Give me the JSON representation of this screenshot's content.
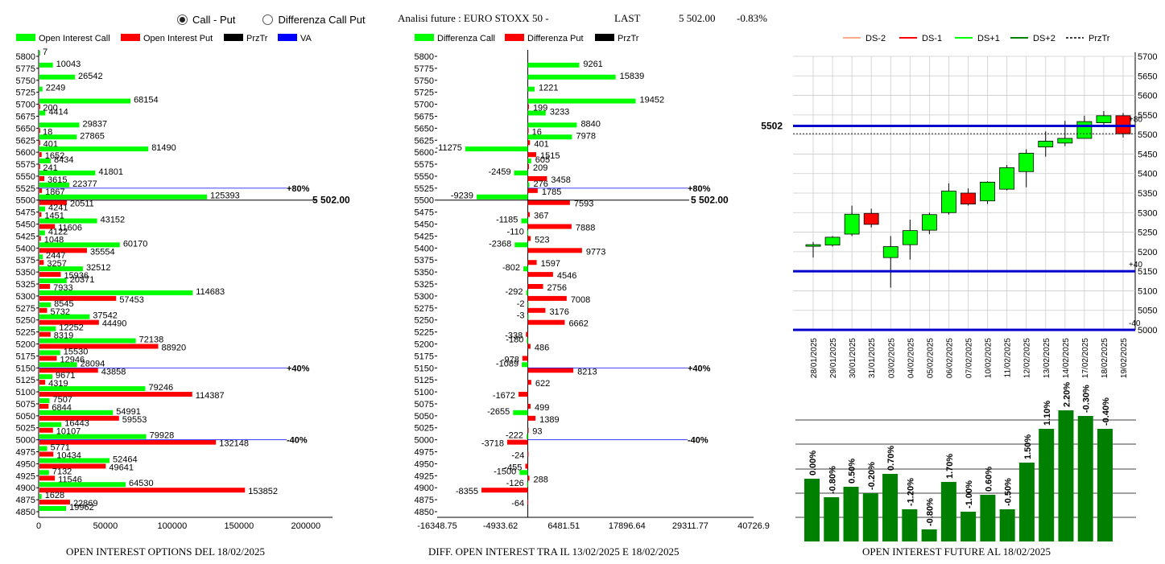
{
  "header": {
    "radio_call_put": "Call - Put",
    "radio_diff": "Differenza Call Put",
    "selected": "call_put",
    "analisi_label": "Analisi future : EURO STOXX 50 -",
    "last_label": "LAST",
    "last_value": "5 502.00",
    "change": "-0.83%"
  },
  "captions": {
    "left": "OPEN INTEREST OPTIONS DEL 18/02/2025",
    "middle": "DIFF. OPEN INTEREST TRA IL 13/02/2025 E 18/02/2025",
    "right": "OPEN INTEREST FUTURE AL 18/02/2025"
  },
  "colors": {
    "call": "#00ff00",
    "put": "#ff0000",
    "przTr": "#000000",
    "va": "#0000ff",
    "candle_up": "#00ff00",
    "candle_down": "#ff0000",
    "ds_m2": "#ffaa88",
    "ds_m1": "#ff0000",
    "ds_p1": "#00ff00",
    "ds_p2": "#008000",
    "oi_bar": "#008000",
    "level_line": "#0000cc"
  },
  "chart_data": [
    {
      "id": "oi_options",
      "type": "bar",
      "orientation": "horizontal",
      "legend": [
        "Open Interest Call",
        "Open Interest Put",
        "PrzTr",
        "VA"
      ],
      "categories": [
        "5800",
        "5775",
        "5750",
        "5725",
        "5700",
        "5675",
        "5650",
        "5625",
        "5600",
        "5575",
        "5550",
        "5525",
        "5500",
        "5475",
        "5450",
        "5425",
        "5400",
        "5375",
        "5350",
        "5325",
        "5300",
        "5275",
        "5250",
        "5225",
        "5200",
        "5175",
        "5150",
        "5125",
        "5100",
        "5075",
        "5050",
        "5025",
        "5000",
        "4975",
        "4950",
        "4925",
        "4900",
        "4875",
        "4850"
      ],
      "series": [
        {
          "name": "Open Interest Call",
          "values": [
            7,
            10043,
            26542,
            2249,
            68154,
            4414,
            29837,
            27865,
            81490,
            8434,
            41801,
            22377,
            125393,
            4241,
            43152,
            4122,
            60170,
            2447,
            32512,
            20371,
            114683,
            8545,
            37542,
            12252,
            72138,
            15530,
            28094,
            9671,
            79246,
            7507,
            54991,
            16443,
            79928,
            5771,
            52464,
            7132,
            64530,
            1628,
            19962
          ]
        },
        {
          "name": "Open Interest Put",
          "values": [
            null,
            null,
            null,
            null,
            200,
            null,
            18,
            401,
            1652,
            241,
            3615,
            1867,
            20511,
            1451,
            11606,
            1048,
            35554,
            3257,
            15936,
            7933,
            57453,
            5732,
            44490,
            8319,
            88920,
            12946,
            43858,
            4319,
            114387,
            6844,
            59553,
            10107,
            132148,
            10434,
            49641,
            11546,
            153852,
            22869,
            null
          ]
        }
      ],
      "xticks": [
        0,
        50000,
        100000,
        150000,
        200000
      ],
      "xlim": [
        0,
        220000
      ],
      "prztr": {
        "level": "5500",
        "label": "5 502.00"
      },
      "va_lines": [
        {
          "level": "5525",
          "label": "+80%"
        },
        {
          "level": "5150",
          "label": "+40%"
        },
        {
          "level": "5000",
          "label": "-40%"
        }
      ]
    },
    {
      "id": "diff_oi",
      "type": "bar",
      "orientation": "horizontal",
      "legend": [
        "Differenza Call",
        "Differenza Put",
        "PrzTr"
      ],
      "categories": [
        "5800",
        "5775",
        "5750",
        "5725",
        "5700",
        "5675",
        "5650",
        "5625",
        "5600",
        "5575",
        "5550",
        "5525",
        "5500",
        "5475",
        "5450",
        "5425",
        "5400",
        "5375",
        "5350",
        "5325",
        "5300",
        "5275",
        "5250",
        "5225",
        "5200",
        "5175",
        "5150",
        "5125",
        "5100",
        "5075",
        "5050",
        "5025",
        "5000",
        "4975",
        "4950",
        "4925",
        "4900",
        "4875",
        "4850"
      ],
      "series": [
        {
          "name": "Differenza Call",
          "values": [
            null,
            9261,
            15839,
            1221,
            19452,
            3233,
            8840,
            7978,
            -11275,
            605,
            -2459,
            276,
            -9239,
            null,
            -1185,
            -110,
            -2368,
            null,
            -802,
            null,
            -292,
            -2,
            -3,
            null,
            -180,
            null,
            -1089,
            null,
            null,
            null,
            -2655,
            null,
            -222,
            null,
            null,
            -1500,
            -126,
            null,
            null
          ]
        },
        {
          "name": "Differenza Put",
          "values": [
            null,
            null,
            null,
            null,
            199,
            null,
            16,
            401,
            1515,
            209,
            3458,
            1785,
            7593,
            367,
            7888,
            523,
            9773,
            1597,
            4546,
            2756,
            7008,
            3176,
            6662,
            -338,
            486,
            -978,
            8213,
            622,
            -1672,
            499,
            1389,
            93,
            -3718,
            -24,
            -455,
            288,
            -8355,
            -64,
            null
          ]
        }
      ],
      "xticks_labels": [
        "-16348.75",
        "-4933.62",
        "6481.51",
        "17896.64",
        "29311.77",
        "40726.9"
      ],
      "xlim": [
        -16348.75,
        40726.9
      ],
      "prztr": {
        "level": "5500",
        "label": "5 502.00"
      },
      "va_lines": [
        {
          "level": "5525",
          "label": "+80%"
        },
        {
          "level": "5150",
          "label": "+40%"
        },
        {
          "level": "5000",
          "label": "-40%"
        }
      ]
    },
    {
      "id": "future_candles",
      "type": "candlestick",
      "legend": [
        "DS-2",
        "DS-1",
        "DS+1",
        "DS+2",
        "PrzTr"
      ],
      "dates": [
        "28/01/2025",
        "29/01/2025",
        "30/01/2025",
        "31/01/2025",
        "03/02/2025",
        "04/02/2025",
        "05/02/2025",
        "06/02/2025",
        "07/02/2025",
        "10/02/2025",
        "11/02/2025",
        "12/02/2025",
        "13/02/2025",
        "14/02/2025",
        "17/02/2025",
        "18/02/2025",
        "19/02/2025"
      ],
      "open": [
        5214,
        5217,
        5245,
        5298,
        5185,
        5218,
        5255,
        5300,
        5350,
        5330,
        5360,
        5405,
        5468,
        5478,
        5490,
        5530,
        5548
      ],
      "high": [
        5225,
        5240,
        5318,
        5310,
        5240,
        5282,
        5300,
        5375,
        5362,
        5380,
        5422,
        5462,
        5508,
        5535,
        5548,
        5560,
        5555
      ],
      "close": [
        5218,
        5237,
        5296,
        5270,
        5213,
        5254,
        5295,
        5355,
        5322,
        5378,
        5415,
        5452,
        5483,
        5490,
        5533,
        5548,
        5502
      ],
      "low": [
        5185,
        5213,
        5240,
        5262,
        5108,
        5180,
        5245,
        5295,
        5318,
        5322,
        5357,
        5365,
        5443,
        5470,
        5490,
        5522,
        5492
      ],
      "yticks": [
        5000,
        5050,
        5100,
        5150,
        5200,
        5250,
        5300,
        5350,
        5400,
        5450,
        5500,
        5550,
        5600,
        5650,
        5700
      ],
      "ylim": [
        5000,
        5700
      ],
      "last": 5502,
      "last_label": "5502",
      "level_lines": [
        {
          "value": 5522,
          "label": "+80"
        },
        {
          "value": 5150,
          "label": "+40"
        },
        {
          "value": 5000,
          "label": "-40"
        }
      ]
    },
    {
      "id": "future_oi_change",
      "type": "bar",
      "labels": [
        "0.00%",
        "-0.80%",
        "0.50%",
        "-0.20%",
        "0.70%",
        "-1.20%",
        "-0.80%",
        "1.70%",
        "-1.00%",
        "0.60%",
        "-0.50%",
        "1.50%",
        "1.10%",
        "2.20%",
        "-0.30%",
        "-0.40%"
      ],
      "values": [
        78,
        55,
        68,
        60,
        84,
        40,
        15,
        74,
        37,
        58,
        40,
        98,
        140,
        163,
        156,
        140
      ]
    }
  ]
}
